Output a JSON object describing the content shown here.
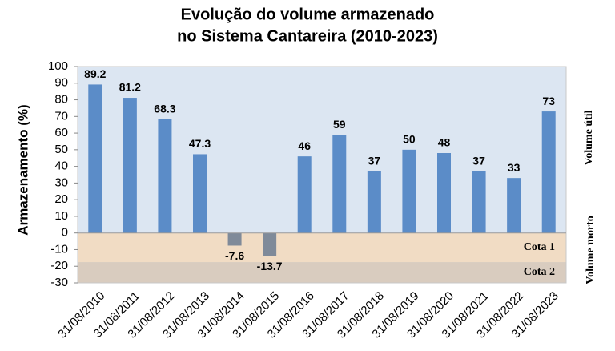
{
  "chart_data": {
    "type": "bar",
    "title": [
      "Evolução do volume armazenado",
      "no Sistema Cantareira (2010-2023)"
    ],
    "y_label": "Armazenamento (%)",
    "categories": [
      "31/08/2010",
      "31/08/2011",
      "31/08/2012",
      "31/08/2013",
      "31/08/2014",
      "31/08/2015",
      "31/08/2016",
      "31/08/2017",
      "31/08/2018",
      "31/08/2019",
      "31/08/2020",
      "31/08/2021",
      "31/08/2022",
      "31/08/2023"
    ],
    "values": [
      89.2,
      81.2,
      68.3,
      47.3,
      -7.6,
      -13.7,
      46,
      59,
      37,
      50,
      48,
      37,
      33,
      73
    ],
    "color": "#5b8cc8",
    "negative_color": "#7f8a99",
    "value_label_color": "#a52a3a",
    "ylim": [
      -30,
      100
    ],
    "yticks": [
      -30,
      -20,
      -10,
      0,
      10,
      20,
      30,
      40,
      50,
      60,
      70,
      80,
      90,
      100
    ],
    "bands": [
      {
        "from": 0,
        "to": 100,
        "color": "#dce6f2"
      },
      {
        "label": "Cota 1",
        "from": -17.5,
        "to": 0,
        "color": "#f1dcc4"
      },
      {
        "label": "Cota 2",
        "from": -30,
        "to": -17.5,
        "color": "#d9ccbf"
      }
    ],
    "side_labels": [
      "Volume útil",
      "Volume morto"
    ]
  }
}
